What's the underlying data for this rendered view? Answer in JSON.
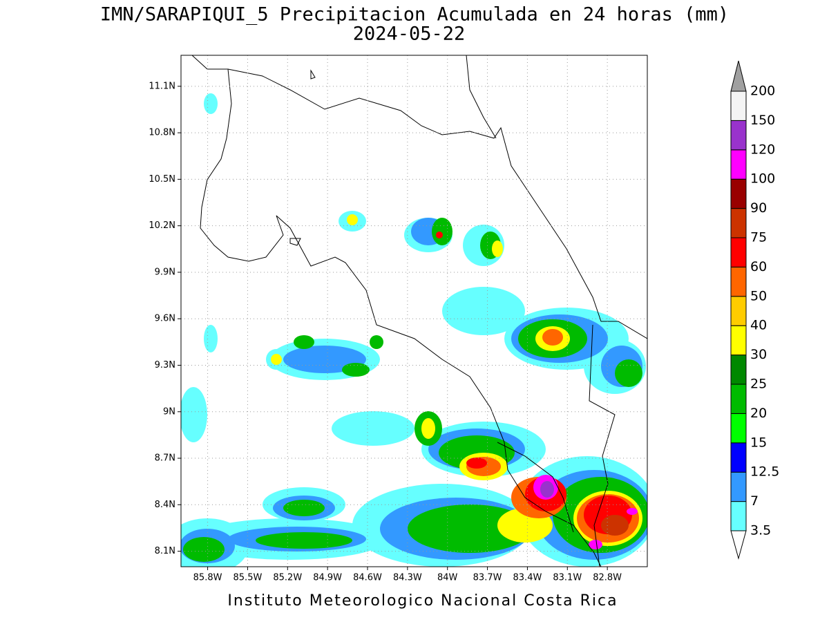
{
  "title": "IMN/SARAPIQUI_5 Precipitacion Acumulada en 24 horas (mm)",
  "subtitle": "2024-05-22",
  "footer": "Instituto Meteorologico Nacional Costa Rica",
  "map": {
    "xlim": [
      -86.0,
      -82.5
    ],
    "ylim": [
      8.0,
      11.3
    ],
    "grid": true,
    "xticks": [
      {
        "value": -85.8,
        "label": "85.8W"
      },
      {
        "value": -85.5,
        "label": "85.5W"
      },
      {
        "value": -85.2,
        "label": "85.2W"
      },
      {
        "value": -84.9,
        "label": "84.9W"
      },
      {
        "value": -84.6,
        "label": "84.6W"
      },
      {
        "value": -84.3,
        "label": "84.3W"
      },
      {
        "value": -84.0,
        "label": "84W"
      },
      {
        "value": -83.7,
        "label": "83.7W"
      },
      {
        "value": -83.4,
        "label": "83.4W"
      },
      {
        "value": -83.1,
        "label": "83.1W"
      },
      {
        "value": -82.8,
        "label": "82.8W"
      }
    ],
    "yticks": [
      {
        "value": 11.1,
        "label": "11.1N"
      },
      {
        "value": 10.8,
        "label": "10.8N"
      },
      {
        "value": 10.5,
        "label": "10.5N"
      },
      {
        "value": 10.2,
        "label": "10.2N"
      },
      {
        "value": 9.9,
        "label": "9.9N"
      },
      {
        "value": 9.6,
        "label": "9.6N"
      },
      {
        "value": 9.3,
        "label": "9.3N"
      },
      {
        "value": 9.0,
        "label": "9N"
      },
      {
        "value": 8.7,
        "label": "8.7N"
      },
      {
        "value": 8.4,
        "label": "8.4N"
      },
      {
        "value": 8.1,
        "label": "8.1N"
      }
    ]
  },
  "colorbar": {
    "levels": [
      3.5,
      7,
      12.5,
      15,
      20,
      25,
      30,
      40,
      50,
      60,
      75,
      90,
      100,
      120,
      150,
      200
    ],
    "colors": [
      "#ffffff",
      "#66ffff",
      "#3399ff",
      "#0000ff",
      "#00ff00",
      "#00bb00",
      "#008800",
      "#ffff00",
      "#ffcc00",
      "#ff6600",
      "#ff0000",
      "#cc3300",
      "#990000",
      "#ff00ff",
      "#9933cc",
      "#f4f4f4",
      "#a0a0a0"
    ]
  }
}
